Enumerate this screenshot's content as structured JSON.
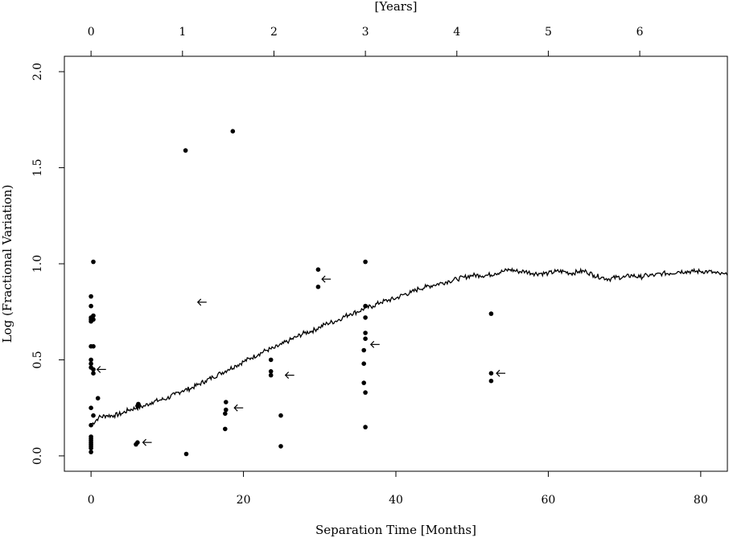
{
  "chart_data": {
    "type": "scatter",
    "title": "",
    "xlabel": "Separation Time [Months]",
    "ylabel": "Log (Fractional Variation)",
    "top_xlabel": "[Years]",
    "xlim": [
      -3.5,
      83.5
    ],
    "ylim": [
      -0.08,
      2.08
    ],
    "x_ticks": [
      0,
      20,
      40,
      60,
      80
    ],
    "y_ticks": [
      0.0,
      0.5,
      1.0,
      1.5,
      2.0
    ],
    "y_tick_labels": [
      "0.0",
      "0.5",
      "1.0",
      "1.5",
      "2.0"
    ],
    "top_ticks_years": [
      0,
      1,
      2,
      3,
      4,
      5,
      6
    ],
    "grid": false,
    "legend": "none",
    "colors": {
      "points": "#000000",
      "line": "#000000",
      "axes": "#000000"
    },
    "series": [
      {
        "type": "scatter",
        "points": [
          [
            0.0,
            0.02
          ],
          [
            0.0,
            0.04
          ],
          [
            0.0,
            0.05
          ],
          [
            0.0,
            0.06
          ],
          [
            0.0,
            0.07
          ],
          [
            0.0,
            0.08
          ],
          [
            0.0,
            0.09
          ],
          [
            0.0,
            0.1
          ],
          [
            0.0,
            0.16
          ],
          [
            0.0,
            0.25
          ],
          [
            0.0,
            0.46
          ],
          [
            0.0,
            0.48
          ],
          [
            0.0,
            0.5
          ],
          [
            0.0,
            0.57
          ],
          [
            0.0,
            0.7
          ],
          [
            0.0,
            0.71
          ],
          [
            0.0,
            0.72
          ],
          [
            0.0,
            0.78
          ],
          [
            0.0,
            0.83
          ],
          [
            0.3,
            0.21
          ],
          [
            0.3,
            0.43
          ],
          [
            0.3,
            0.45
          ],
          [
            0.3,
            0.57
          ],
          [
            0.3,
            0.71
          ],
          [
            0.3,
            0.73
          ],
          [
            0.3,
            1.01
          ],
          [
            0.9,
            0.3
          ],
          [
            5.9,
            0.06
          ],
          [
            6.1,
            0.07
          ],
          [
            6.1,
            0.26
          ],
          [
            6.2,
            0.27
          ],
          [
            12.4,
            1.59
          ],
          [
            12.5,
            0.01
          ],
          [
            17.6,
            0.14
          ],
          [
            17.6,
            0.22
          ],
          [
            17.7,
            0.24
          ],
          [
            17.7,
            0.28
          ],
          [
            18.6,
            1.69
          ],
          [
            23.6,
            0.42
          ],
          [
            23.6,
            0.44
          ],
          [
            23.6,
            0.5
          ],
          [
            24.9,
            0.05
          ],
          [
            24.9,
            0.21
          ],
          [
            29.8,
            0.88
          ],
          [
            29.8,
            0.97
          ],
          [
            35.8,
            0.38
          ],
          [
            35.8,
            0.48
          ],
          [
            35.8,
            0.55
          ],
          [
            36.0,
            0.15
          ],
          [
            36.0,
            0.33
          ],
          [
            36.0,
            0.61
          ],
          [
            36.0,
            0.64
          ],
          [
            36.0,
            0.72
          ],
          [
            36.0,
            0.78
          ],
          [
            36.0,
            1.01
          ],
          [
            52.5,
            0.39
          ],
          [
            52.5,
            0.43
          ],
          [
            52.5,
            0.74
          ]
        ]
      },
      {
        "type": "line",
        "points": [
          [
            0.0,
            0.16
          ],
          [
            1.0,
            0.2
          ],
          [
            2.0,
            0.21
          ],
          [
            3.0,
            0.21
          ],
          [
            4.0,
            0.22
          ],
          [
            5.0,
            0.24
          ],
          [
            6.0,
            0.25
          ],
          [
            7.0,
            0.26
          ],
          [
            8.0,
            0.28
          ],
          [
            9.0,
            0.29
          ],
          [
            10.0,
            0.3
          ],
          [
            11.0,
            0.32
          ],
          [
            12.0,
            0.34
          ],
          [
            13.0,
            0.35
          ],
          [
            14.0,
            0.37
          ],
          [
            15.0,
            0.39
          ],
          [
            16.0,
            0.41
          ],
          [
            17.0,
            0.43
          ],
          [
            18.0,
            0.45
          ],
          [
            19.0,
            0.47
          ],
          [
            20.0,
            0.49
          ],
          [
            21.0,
            0.51
          ],
          [
            22.0,
            0.53
          ],
          [
            23.0,
            0.55
          ],
          [
            24.0,
            0.56
          ],
          [
            25.0,
            0.58
          ],
          [
            26.0,
            0.6
          ],
          [
            27.0,
            0.62
          ],
          [
            28.0,
            0.64
          ],
          [
            29.0,
            0.65
          ],
          [
            30.0,
            0.67
          ],
          [
            31.0,
            0.69
          ],
          [
            32.0,
            0.7
          ],
          [
            33.0,
            0.72
          ],
          [
            34.0,
            0.74
          ],
          [
            35.0,
            0.75
          ],
          [
            36.0,
            0.77
          ],
          [
            37.0,
            0.78
          ],
          [
            38.0,
            0.8
          ],
          [
            39.0,
            0.81
          ],
          [
            40.0,
            0.82
          ],
          [
            41.0,
            0.84
          ],
          [
            42.0,
            0.85
          ],
          [
            43.0,
            0.87
          ],
          [
            44.0,
            0.88
          ],
          [
            45.0,
            0.89
          ],
          [
            46.0,
            0.9
          ],
          [
            47.0,
            0.91
          ],
          [
            48.0,
            0.92
          ],
          [
            49.0,
            0.93
          ],
          [
            50.0,
            0.94
          ],
          [
            51.0,
            0.94
          ],
          [
            52.0,
            0.94
          ],
          [
            53.0,
            0.95
          ],
          [
            54.0,
            0.96
          ],
          [
            55.0,
            0.97
          ],
          [
            56.0,
            0.96
          ],
          [
            57.0,
            0.96
          ],
          [
            58.0,
            0.95
          ],
          [
            59.0,
            0.95
          ],
          [
            60.0,
            0.95
          ],
          [
            61.0,
            0.96
          ],
          [
            62.0,
            0.96
          ],
          [
            63.0,
            0.95
          ],
          [
            64.0,
            0.96
          ],
          [
            65.0,
            0.96
          ],
          [
            66.0,
            0.94
          ],
          [
            67.0,
            0.93
          ],
          [
            68.0,
            0.92
          ],
          [
            69.0,
            0.93
          ],
          [
            70.0,
            0.93
          ],
          [
            71.0,
            0.94
          ],
          [
            72.0,
            0.93
          ],
          [
            73.0,
            0.94
          ],
          [
            74.0,
            0.94
          ],
          [
            75.0,
            0.95
          ],
          [
            76.0,
            0.95
          ],
          [
            77.0,
            0.96
          ],
          [
            78.0,
            0.96
          ],
          [
            79.0,
            0.96
          ],
          [
            80.0,
            0.96
          ],
          [
            81.0,
            0.96
          ],
          [
            82.0,
            0.95
          ],
          [
            83.5,
            0.94
          ]
        ]
      }
    ],
    "annotations": [
      {
        "type": "arrow-left",
        "x": 0.8,
        "y": 0.45
      },
      {
        "type": "arrow-left",
        "x": 6.8,
        "y": 0.07
      },
      {
        "type": "arrow-left",
        "x": 14.0,
        "y": 0.8
      },
      {
        "type": "arrow-left",
        "x": 18.8,
        "y": 0.25
      },
      {
        "type": "arrow-left",
        "x": 25.5,
        "y": 0.42
      },
      {
        "type": "arrow-left",
        "x": 30.3,
        "y": 0.92
      },
      {
        "type": "arrow-left",
        "x": 36.7,
        "y": 0.58
      },
      {
        "type": "arrow-left",
        "x": 53.2,
        "y": 0.43
      }
    ]
  }
}
